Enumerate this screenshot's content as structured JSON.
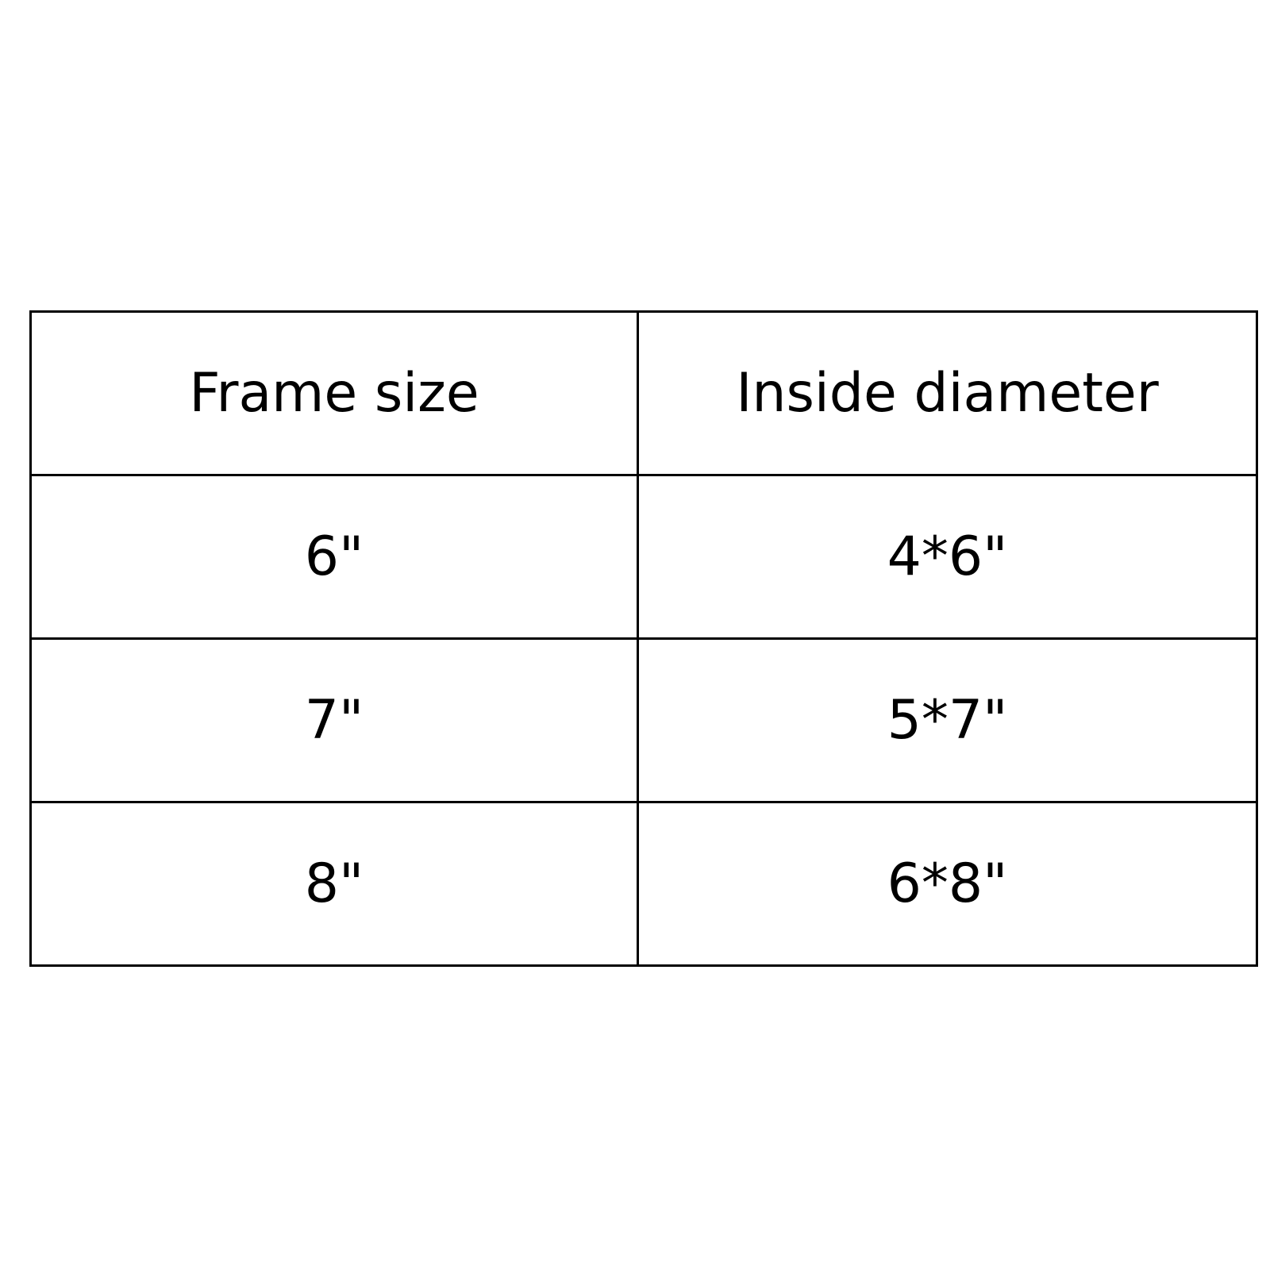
{
  "table": {
    "headers": [
      "Frame size",
      "Inside diameter"
    ],
    "rows": [
      [
        "6\"",
        "4*6\""
      ],
      [
        "7\"",
        "5*7\""
      ],
      [
        "8\"",
        "6*8\""
      ]
    ]
  }
}
